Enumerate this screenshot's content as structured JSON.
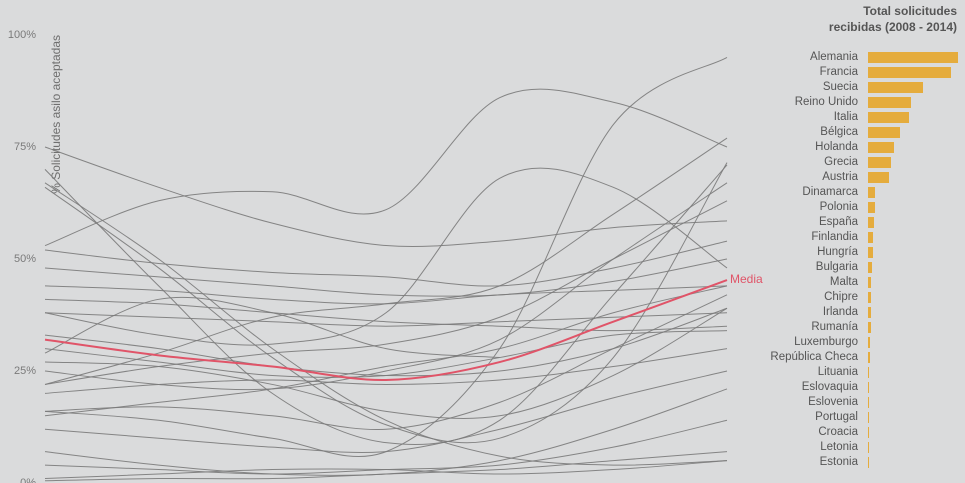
{
  "page": {
    "background": "#dadbdc"
  },
  "chart_data": [
    {
      "type": "line",
      "ylabel": "% Solicitudes asilo aceptadas",
      "ylim": [
        0,
        100
      ],
      "yticks": [
        "0%",
        "25%",
        "50%",
        "75%",
        "100%"
      ],
      "grid": false,
      "line_color": "#7a7a7a",
      "series": [
        {
          "values": [
            75,
            66,
            58,
            53,
            54,
            57,
            58.5
          ]
        },
        {
          "values": [
            53,
            63,
            65,
            61,
            86,
            85,
            75
          ]
        },
        {
          "values": [
            70,
            44,
            20,
            9,
            14,
            42,
            71
          ]
        },
        {
          "values": [
            67,
            50,
            30,
            14,
            6,
            4,
            5
          ]
        },
        {
          "values": [
            52,
            49,
            47,
            46,
            44,
            48,
            54
          ]
        },
        {
          "values": [
            48,
            46,
            44,
            42,
            42,
            45,
            50
          ]
        },
        {
          "values": [
            44,
            43,
            41,
            40,
            42,
            43,
            44
          ]
        },
        {
          "values": [
            41,
            40,
            38,
            36,
            35,
            34,
            35
          ]
        },
        {
          "values": [
            38,
            33,
            31,
            38,
            68,
            66,
            48
          ]
        },
        {
          "values": [
            29,
            41,
            38,
            30,
            28,
            null,
            null
          ]
        },
        {
          "values": [
            16,
            14,
            10,
            7,
            30,
            80,
            95
          ]
        },
        {
          "values": [
            22,
            29,
            37,
            40,
            44,
            60,
            77
          ]
        },
        {
          "values": [
            25,
            22,
            21,
            25,
            32,
            50,
            67
          ]
        },
        {
          "values": [
            15,
            18,
            21,
            26,
            30,
            38,
            44
          ]
        },
        {
          "values": [
            12,
            10,
            8,
            7,
            12,
            19,
            25
          ]
        },
        {
          "values": [
            7,
            4,
            2,
            2,
            5,
            12,
            21
          ]
        },
        {
          "values": [
            4,
            3,
            2,
            3,
            4,
            8,
            14
          ]
        },
        {
          "values": [
            0.5,
            1,
            1,
            2,
            3,
            5,
            7
          ]
        },
        {
          "values": [
            1,
            2,
            3,
            3,
            2,
            3,
            5
          ]
        },
        {
          "values": [
            33,
            30,
            26,
            24,
            25,
            30,
            39
          ]
        },
        {
          "values": [
            66,
            48,
            28,
            13,
            10,
            28,
            71.5
          ]
        },
        {
          "values": [
            38,
            37,
            36,
            35,
            36,
            37,
            38
          ]
        },
        {
          "values": [
            20,
            22,
            23,
            22,
            23,
            26,
            30
          ]
        },
        {
          "values": [
            16,
            17,
            15,
            12,
            18,
            30,
            42
          ]
        },
        {
          "values": [
            27,
            26,
            22,
            16,
            15,
            24,
            39
          ]
        },
        {
          "values": [
            22,
            26,
            29,
            31,
            37,
            50,
            63
          ]
        },
        {
          "values": [
            30,
            27,
            24,
            24,
            28,
            33,
            34
          ]
        },
        {
          "name": "Media",
          "color": "#e05468",
          "values": [
            32,
            28.5,
            26,
            23,
            27,
            36,
            45.3
          ]
        }
      ]
    },
    {
      "type": "bar",
      "orientation": "horizontal",
      "title": "Total solicitudes\nrecibidas (2008 - 2014)",
      "bar_color": "#e5ac3d",
      "categories": [
        "Alemania",
        "Francia",
        "Suecia",
        "Reino Unido",
        "Italia",
        "Bélgica",
        "Holanda",
        "Grecia",
        "Austria",
        "Dinamarca",
        "Polonia",
        "España",
        "Finlandia",
        "Hungría",
        "Bulgaria",
        "Malta",
        "Chipre",
        "Irlanda",
        "Rumanía",
        "Luxemburgo",
        "República Checa",
        "Lituania",
        "Eslovaquia",
        "Eslovenia",
        "Portugal",
        "Croacia",
        "Letonia",
        "Estonia"
      ],
      "values": [
        1.0,
        0.92,
        0.61,
        0.48,
        0.45,
        0.36,
        0.29,
        0.25,
        0.23,
        0.08,
        0.08,
        0.065,
        0.055,
        0.05,
        0.045,
        0.035,
        0.035,
        0.033,
        0.028,
        0.025,
        0.022,
        0.012,
        0.011,
        0.01,
        0.009,
        0.008,
        0.006,
        0.005
      ]
    }
  ]
}
